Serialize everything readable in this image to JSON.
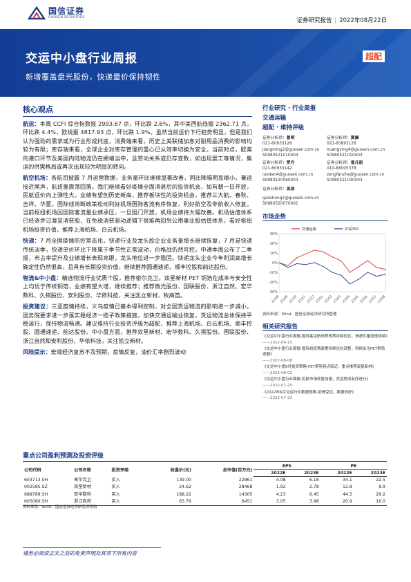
{
  "header": {
    "logo_cn": "国信证券",
    "logo_en": "GUOSEN SECURITIES",
    "report_type": "证券研究报告",
    "date": "2022年08月22日"
  },
  "banner": {
    "title": "交运中小盘行业周报",
    "subtitle": "新增覆盖盘光股份，快递量价保持韧性",
    "rating": "超配"
  },
  "core": {
    "heading": "核心观点",
    "paragraphs": [
      {
        "lead": "航运：",
        "text": "本周 CCFI 综合指数报 2993.67 点，环比跌 2.6%，其中美西航线报 2362.71 点，环比跌 4.4%，欧线报 4817.93 点，环比跌 1.9%。虽然当前运价下行趋势明显，但是我们认为强劲的需求或为行业形成托底，消费端来看，历史上美联储加息对耐用品消费的影响均较为有限；库存端来看，全球企业对库存管理的重心已从效率切换为安全。当前时点，欧美的港口环节及美国内陆物流仍在拥堵当中，且劳动关系或仍存变数，如出现罢工等情况，集运的供需格局或再次出现较为明显的转向。"
      },
      {
        "lead": "航空机场：",
        "text": "各航司披露 7 月运营数据，业务量环比继续显著改善，同比降幅明显缩小。暑运接近尾声，航班量震荡回落。我们继续看好疫情全面消退后的投资机会，如有朝一日开放，民航运价向上弹性大，业绩有望创历史新高，推荐板块性的投资机会，推荐三大航、春秋、吉祥、华夏。国际线将断政策松动利好机场国际客流有序恢复，利好航空及非航收入修复。当前枢纽机场因国际客流量业绩承压，一旦国门开放，机场业绩将大幅改善。机场估值体系已经逐步过渡至消费股，在免税消费驱动逻辑下很难再回到公用事业股估值体系，看好枢纽机场投资价值，推荐上海机场、白云机场。"
      },
      {
        "lead": "快递：",
        "text": "7 月全国疫情防控常态化，快递行业及龙头股企业业务量增长继续恢复，7 月是快递传统淡季，快递单价环比下降属于季节性正常波动，价格战仍然可控。中通本周公布了二季报，市占率提升及业绩增长表现亮眼，龙头地位进一步稳固。快递龙头企业今年利润高增长确定性仍然很高，且具有长期投资价值，继续推荐圆通速递、顺丰控股和韵达股份。"
      },
      {
        "lead": "物流&中小盘：",
        "text": "精选物流行业优质个股，推荐密尔克卫。双星新材 PET 铜箔在成本与安全性上均优于传统铜箔，业绩有望大增，继续推荐；推荐微光股份、国联股份、浙江自然、宏华数科、久祺股份、安利股份、华依科技，关注凯立新材、牧高笛。"
      },
      {
        "lead": "投资建议：",
        "text": "三亚疫情持续，义乌疫情已基本得到控制，对全国货运物流的影响进一步减小。国务院要求进一步落实稳经济一揽子政策措施，加快交通运输业恢复，货运物流总体保持平稳运行，保持物流畅通。建议维持行业投资评级为超配，推荐上海机场、白云机场、顺丰控股、圆通速递、韵达股份。中小盘方面，推荐双星新材、宏华数科、久祺股份、国联股份、浙江自然和安利股份、华依科技，关注凯立新材。"
      },
      {
        "lead": "风险提示：",
        "text": "宏观经济复苏不及预期，疫情反复，油价汇率剧烈波动"
      }
    ]
  },
  "sidebar": {
    "industry": "行业研究 · 行业周报",
    "sector": "交通运输",
    "rating_line": "超配 · 维持评级",
    "analysts": [
      {
        "label": "证券分析师：",
        "name": "曾明",
        "phone": "021-60933128",
        "email": "jiangming2@guosen.com.cn",
        "cert": "S0980521010004"
      },
      {
        "label": "证券分析师：",
        "name": "黄晨",
        "phone": "021-60893126",
        "email": "huangying4@guosen.com.cn",
        "cert": "S0980521010003"
      },
      {
        "label": "证券分析师：",
        "name": "罗丹",
        "phone": "021-60933142",
        "email": "luodan4@guosen.com.cn",
        "cert": "S0980520060003"
      },
      {
        "label": "证券分析师：",
        "name": "曾凡丽",
        "phone": "010-88005378",
        "email": "zengfanzhe@guosen.com.cn",
        "cert": "S0980521030003"
      }
    ],
    "contact_label": "证券分析师：",
    "contact_name": "高晟",
    "contact_email": "gaosheng2@guosen.com.cn",
    "contact_cert": "S0980520070001",
    "market_title": "市场走势",
    "chart_source": "资料来源：Wind、国信证券经济研究所整理",
    "related_title": "相关研究报告",
    "related": [
      {
        "title": "《交运中小盘行业周报-国际客运航线等政策持续优化，快递件量增速持续》",
        "date": "——2022-08-15"
      },
      {
        "title": "《交运中小盘行业周报-国际线疫情政策持续优化调整，持续关注PET铜箔进展》",
        "date": "——2022-08-08"
      },
      {
        "title": "《交运中小盘8月投资策略-PET铜箔拐点临近，重点推荐双星新材》",
        "date": "——2022-08-02"
      },
      {
        "title": "《交运中小盘行业周报-民航市场修复加速，货运物流有序进行》",
        "date": "——2022-07-25"
      },
      {
        "title": "《2022年6月交运行业数据观察-疫情受控，数据向好》",
        "date": "——2022-07-22"
      }
    ]
  },
  "chart_data": {
    "type": "line",
    "title": "",
    "x": [
      "21/08",
      "21/09",
      "21/10",
      "21/11",
      "21/12",
      "22/01",
      "22/02",
      "22/03",
      "22/04",
      "22/05",
      "22/06",
      "22/07",
      "22/08"
    ],
    "series": [
      {
        "name": "交通运输",
        "color": "#d7282f",
        "values": [
          0,
          -3,
          5,
          9,
          13,
          11,
          6,
          2,
          -10,
          -4,
          2,
          -5,
          -7
        ]
      },
      {
        "name": "沪深300",
        "color": "#1c3a86",
        "values": [
          0,
          -5,
          -1,
          -2,
          0,
          -4,
          -10,
          -13,
          -22,
          -17,
          -10,
          -14,
          -12
        ]
      }
    ],
    "ylim": [
      -30,
      30
    ],
    "yticks": [
      "30%",
      "20%",
      "10%",
      "0%",
      "-10%",
      "-20%",
      "-30%"
    ],
    "grid": false,
    "legend": "top"
  },
  "valuation": {
    "title": "重点公司盈利预测及投资评级",
    "headers": {
      "code": "公司代码",
      "name": "公司名称",
      "rating": "投资评级",
      "price": "收盘价(元)",
      "cap": "总市值(百万元)",
      "eps": "EPS",
      "pe": "PE",
      "y1": "2022E",
      "y2": "2023E"
    },
    "rows": [
      {
        "code": "603713.SH",
        "name": "密尔克卫",
        "rating": "买入",
        "price": "139.00",
        "cap": "22861",
        "eps1": "4.08",
        "eps2": "6.18",
        "pe1": "34.1",
        "pe2": "22.5"
      },
      {
        "code": "002585.SZ",
        "name": "双星新材",
        "rating": "买入",
        "price": "24.62",
        "cap": "28468",
        "eps1": "1.92",
        "eps2": "2.78",
        "pe1": "12.8",
        "pe2": "8.9"
      },
      {
        "code": "688789.SH",
        "name": "宏华数科",
        "rating": "买入",
        "price": "188.22",
        "cap": "14305",
        "eps1": "4.23",
        "eps2": "6.45",
        "pe1": "44.5",
        "pe2": "29.2"
      },
      {
        "code": "605080.SH",
        "name": "浙江自然",
        "rating": "买入",
        "price": "63.79",
        "cap": "6451",
        "eps1": "3.05",
        "eps2": "3.98",
        "pe1": "20.9",
        "pe2": "16.0"
      }
    ],
    "source": "资料来源：Wind、国信证券经济研究所预测"
  },
  "footer": {
    "disclaimer": "请务必阅读正文之后的免责声明及其项下所有内容"
  }
}
